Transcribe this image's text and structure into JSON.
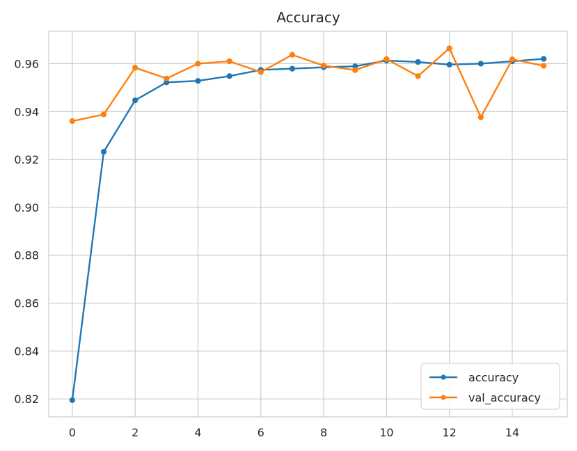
{
  "chart_data": {
    "type": "line",
    "title": "Accuracy",
    "xlabel": "",
    "ylabel": "",
    "x": [
      0,
      1,
      2,
      3,
      4,
      5,
      6,
      7,
      8,
      9,
      10,
      11,
      12,
      13,
      14,
      15
    ],
    "xlim": [
      -0.75,
      15.75
    ],
    "ylim": [
      0.8125,
      0.9735
    ],
    "x_ticks": [
      0,
      2,
      4,
      6,
      8,
      10,
      12,
      14
    ],
    "y_ticks": [
      0.82,
      0.84,
      0.86,
      0.88,
      0.9,
      0.92,
      0.94,
      0.96
    ],
    "x_tick_labels": [
      "0",
      "2",
      "4",
      "6",
      "8",
      "10",
      "12",
      "14"
    ],
    "y_tick_labels": [
      "0.82",
      "0.84",
      "0.86",
      "0.88",
      "0.90",
      "0.92",
      "0.94",
      "0.96"
    ],
    "grid": true,
    "legend_position": "bottom-right",
    "series": [
      {
        "name": "accuracy",
        "color": "#1f77b4",
        "values": [
          0.8195,
          0.9232,
          0.9447,
          0.9522,
          0.9528,
          0.9548,
          0.9574,
          0.9579,
          0.9585,
          0.9589,
          0.9613,
          0.9607,
          0.9596,
          0.96,
          0.961,
          0.962
        ]
      },
      {
        "name": "val_accuracy",
        "color": "#ff7f0e",
        "values": [
          0.936,
          0.9388,
          0.9583,
          0.9538,
          0.96,
          0.961,
          0.9565,
          0.9637,
          0.9592,
          0.9573,
          0.9619,
          0.9548,
          0.9664,
          0.9376,
          0.9618,
          0.9591
        ]
      }
    ]
  }
}
